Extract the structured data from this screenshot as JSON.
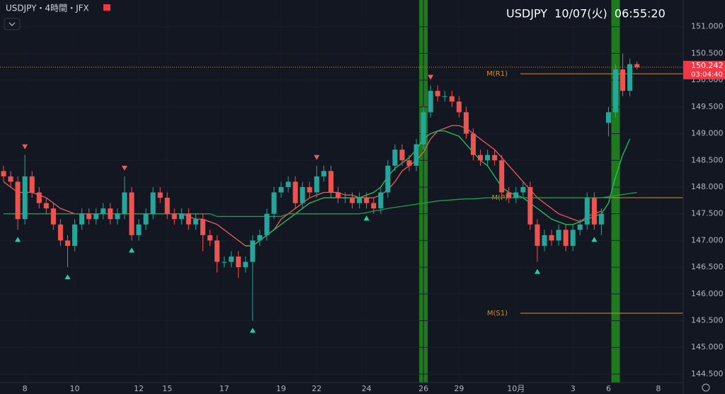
{
  "header": {
    "symbol": "USDJPY・4時間・JFX",
    "clock": "USDJPY  10/07(火)  06:55:20"
  },
  "chart_data": {
    "type": "candlestick",
    "categories": [
      null,
      null,
      null,
      "8",
      null,
      null,
      null,
      null,
      null,
      null,
      "10",
      null,
      null,
      null,
      null,
      null,
      null,
      null,
      null,
      "12",
      null,
      null,
      null,
      "15",
      null,
      null,
      null,
      null,
      null,
      null,
      null,
      "17",
      null,
      null,
      null,
      null,
      null,
      null,
      null,
      "19",
      null,
      null,
      null,
      null,
      "22",
      null,
      null,
      null,
      null,
      null,
      null,
      "24",
      null,
      null,
      null,
      null,
      null,
      null,
      null,
      "26",
      null,
      null,
      null,
      null,
      "29",
      null,
      null,
      null,
      null,
      null,
      null,
      null,
      "10月",
      null,
      null,
      null,
      null,
      null,
      null,
      null,
      "3",
      null,
      null,
      null,
      null,
      "6",
      null,
      null,
      null,
      null,
      null,
      null,
      "8",
      null,
      null,
      null
    ],
    "open": [
      148.3,
      148.2,
      148.1,
      147.4,
      148.2,
      147.9,
      147.7,
      147.6,
      147.3,
      147.0,
      146.9,
      147.3,
      147.5,
      147.4,
      147.5,
      147.6,
      147.4,
      147.5,
      147.9,
      147.1,
      147.3,
      147.5,
      147.9,
      147.8,
      147.5,
      147.4,
      147.5,
      147.3,
      147.4,
      147.1,
      147.0,
      146.6,
      146.6,
      146.7,
      146.5,
      146.6,
      147.0,
      147.1,
      147.5,
      147.9,
      148.0,
      148.1,
      147.7,
      148.0,
      147.9,
      148.2,
      148.3,
      147.9,
      147.8,
      147.8,
      147.7,
      147.8,
      147.7,
      147.6,
      147.9,
      148.4,
      148.7,
      148.5,
      148.4,
      148.8,
      149.4,
      149.8,
      149.7,
      149.7,
      149.6,
      149.4,
      149.0,
      148.6,
      148.5,
      148.6,
      148.5,
      147.9,
      147.8,
      147.9,
      148.0,
      147.3,
      146.9,
      147.1,
      147.0,
      147.2,
      146.9,
      147.2,
      147.3,
      147.8,
      147.3,
      149.2,
      149.4,
      150.2,
      149.8,
      150.3,
      null,
      null,
      null,
      null,
      null,
      null
    ],
    "high": [
      148.4,
      148.3,
      148.2,
      148.6,
      148.3,
      148.0,
      147.8,
      147.7,
      147.4,
      147.1,
      147.4,
      147.6,
      147.6,
      147.6,
      147.7,
      147.7,
      147.6,
      148.2,
      148.0,
      147.4,
      147.6,
      148.0,
      148.0,
      147.9,
      147.6,
      147.6,
      147.6,
      147.5,
      147.5,
      147.2,
      147.1,
      146.7,
      146.8,
      146.8,
      146.7,
      147.1,
      147.2,
      147.6,
      148.0,
      148.1,
      148.2,
      148.2,
      148.1,
      148.1,
      148.4,
      148.4,
      148.4,
      148.0,
      147.9,
      147.9,
      147.9,
      147.9,
      147.8,
      148.0,
      148.5,
      148.8,
      148.8,
      148.6,
      148.9,
      149.5,
      149.9,
      149.9,
      149.8,
      149.8,
      149.7,
      149.5,
      149.1,
      148.7,
      148.7,
      148.7,
      148.6,
      148.0,
      148.0,
      148.1,
      148.1,
      147.4,
      147.2,
      147.2,
      147.3,
      147.3,
      147.3,
      147.4,
      147.9,
      147.9,
      147.6,
      149.5,
      150.3,
      150.5,
      150.4,
      150.35,
      null,
      null,
      null,
      null,
      null,
      null
    ],
    "low": [
      148.1,
      148.0,
      147.2,
      147.3,
      147.8,
      147.6,
      147.5,
      147.2,
      146.9,
      146.5,
      146.8,
      147.2,
      147.3,
      147.3,
      147.4,
      147.3,
      147.3,
      147.4,
      147.0,
      147.0,
      147.2,
      147.4,
      147.7,
      147.4,
      147.3,
      147.3,
      147.2,
      147.2,
      146.8,
      146.9,
      146.4,
      146.5,
      146.5,
      146.3,
      146.4,
      145.5,
      146.9,
      147.0,
      147.4,
      147.8,
      147.9,
      147.6,
      147.6,
      147.8,
      147.8,
      148.1,
      147.8,
      147.7,
      147.7,
      147.6,
      147.6,
      147.6,
      147.5,
      147.5,
      147.8,
      148.3,
      148.4,
      148.3,
      148.3,
      148.7,
      149.3,
      149.6,
      149.6,
      149.5,
      149.3,
      148.9,
      148.5,
      148.4,
      148.4,
      148.4,
      147.8,
      147.7,
      147.7,
      147.8,
      147.2,
      146.6,
      146.8,
      146.9,
      146.9,
      146.8,
      146.8,
      147.1,
      147.2,
      147.2,
      147.1,
      148.95,
      149.3,
      149.7,
      149.7,
      150.2,
      null,
      null,
      null,
      null,
      null,
      null
    ],
    "close": [
      148.2,
      148.1,
      147.4,
      148.2,
      147.9,
      147.7,
      147.6,
      147.3,
      147.0,
      146.9,
      147.3,
      147.5,
      147.4,
      147.5,
      147.6,
      147.4,
      147.5,
      147.9,
      147.1,
      147.3,
      147.5,
      147.9,
      147.8,
      147.5,
      147.4,
      147.5,
      147.3,
      147.4,
      147.1,
      147.0,
      146.6,
      146.6,
      146.7,
      146.5,
      146.6,
      147.0,
      147.1,
      147.5,
      147.9,
      148.0,
      148.1,
      147.7,
      148.0,
      147.9,
      148.2,
      148.3,
      147.9,
      147.8,
      147.8,
      147.7,
      147.8,
      147.7,
      147.6,
      147.9,
      148.4,
      148.7,
      148.5,
      148.4,
      148.8,
      149.4,
      149.8,
      149.7,
      149.7,
      149.6,
      149.4,
      149.0,
      148.6,
      148.5,
      148.6,
      148.5,
      147.9,
      147.8,
      147.9,
      148.0,
      147.3,
      146.9,
      147.1,
      147.0,
      147.2,
      146.9,
      147.2,
      147.3,
      147.8,
      147.3,
      147.5,
      149.4,
      150.2,
      149.8,
      150.3,
      150.242,
      null,
      null,
      null,
      null,
      null,
      null
    ],
    "up_color": "#26a69a",
    "down_color": "#ef5350",
    "series": [
      {
        "color": "#f05a5a",
        "values": [
          148.1,
          148.0,
          147.9,
          147.9,
          147.9,
          147.85,
          147.8,
          147.7,
          147.6,
          147.55,
          147.5,
          147.5,
          147.5,
          147.5,
          147.5,
          147.5,
          147.5,
          147.5,
          147.5,
          147.5,
          147.5,
          147.5,
          147.5,
          147.5,
          147.5,
          147.5,
          147.45,
          147.4,
          147.4,
          147.35,
          147.3,
          147.2,
          147.1,
          147.0,
          146.9,
          146.9,
          147.0,
          147.1,
          147.2,
          147.4,
          147.5,
          147.6,
          147.7,
          147.8,
          147.85,
          147.9,
          147.9,
          147.9,
          147.85,
          147.85,
          147.8,
          147.8,
          147.8,
          147.85,
          147.95,
          148.1,
          148.3,
          148.4,
          148.5,
          148.65,
          148.9,
          149.05,
          149.1,
          149.15,
          149.15,
          149.1,
          149.0,
          148.9,
          148.8,
          148.7,
          148.55,
          148.4,
          148.25,
          148.1,
          147.95,
          147.8,
          147.7,
          147.6,
          147.5,
          147.45,
          147.4,
          147.35,
          147.45,
          147.5,
          147.55,
          null,
          null,
          null,
          null,
          null,
          null,
          null,
          null,
          null,
          null,
          null
        ]
      },
      {
        "color": "#22c55e",
        "values": [
          null,
          null,
          null,
          null,
          null,
          null,
          null,
          null,
          null,
          null,
          null,
          null,
          null,
          null,
          null,
          null,
          null,
          null,
          null,
          null,
          null,
          null,
          null,
          null,
          null,
          null,
          null,
          null,
          null,
          null,
          null,
          null,
          null,
          null,
          146.9,
          146.9,
          147.0,
          147.1,
          147.2,
          147.3,
          147.4,
          147.5,
          147.6,
          147.7,
          147.75,
          147.8,
          147.8,
          147.8,
          147.8,
          147.8,
          147.8,
          147.85,
          147.9,
          148.0,
          148.2,
          148.35,
          148.45,
          148.55,
          148.7,
          148.9,
          149.0,
          149.05,
          149.05,
          149.0,
          148.95,
          148.8,
          148.65,
          148.5,
          148.4,
          148.2,
          148.0,
          147.9,
          147.85,
          147.8,
          147.7,
          147.6,
          147.5,
          147.4,
          147.35,
          147.3,
          147.3,
          147.35,
          147.4,
          147.45,
          147.5,
          147.7,
          148.2,
          148.6,
          148.9,
          null,
          null,
          null,
          null,
          null,
          null,
          null
        ]
      },
      {
        "color": "#16a34a",
        "values": [
          147.5,
          147.5,
          147.5,
          147.5,
          147.5,
          147.5,
          147.5,
          147.5,
          147.5,
          147.5,
          147.5,
          147.5,
          147.5,
          147.5,
          147.5,
          147.5,
          147.5,
          147.5,
          147.5,
          147.5,
          147.5,
          147.5,
          147.5,
          147.5,
          147.5,
          147.5,
          147.5,
          147.5,
          147.5,
          147.5,
          147.45,
          147.45,
          147.45,
          147.45,
          147.45,
          147.45,
          147.45,
          147.45,
          147.45,
          147.45,
          147.5,
          147.5,
          147.5,
          147.5,
          147.5,
          147.5,
          147.5,
          147.5,
          147.5,
          147.5,
          147.5,
          147.52,
          147.55,
          147.57,
          147.6,
          147.62,
          147.64,
          147.66,
          147.68,
          147.7,
          147.72,
          147.74,
          147.75,
          147.76,
          147.77,
          147.78,
          147.78,
          147.79,
          147.8,
          147.8,
          147.8,
          147.8,
          147.8,
          147.8,
          147.8,
          147.8,
          147.8,
          147.8,
          147.8,
          147.8,
          147.8,
          147.8,
          147.8,
          147.8,
          147.8,
          147.82,
          147.84,
          147.86,
          147.88,
          147.9,
          null,
          null,
          null,
          null,
          null,
          null
        ]
      }
    ],
    "levels": [
      {
        "label": "M(R1)",
        "value": 150.12
      },
      {
        "label": "M(P)",
        "value": 147.8
      },
      {
        "label": "M(S1)",
        "value": 145.64
      }
    ],
    "level_color": "#d4901f",
    "last_price": 150.242,
    "countdown": "03:04:40",
    "price_label_color": "#f23645",
    "highlight_bars": [
      59,
      86
    ],
    "highlight_color": "#1f7a1f",
    "signals_up": [
      2,
      9,
      18,
      35,
      51,
      75,
      83
    ],
    "signals_down": [
      3,
      17,
      44,
      60
    ],
    "ylim": [
      144.34,
      151.5
    ],
    "yticks": [
      {
        "value": 151,
        "label": "151.000"
      },
      {
        "value": 150.5,
        "label": "150.500"
      },
      {
        "value": 150,
        "label": "150.000"
      },
      {
        "value": 149.5,
        "label": "149.500"
      },
      {
        "value": 149,
        "label": "149.000"
      },
      {
        "value": 148.5,
        "label": "148.500"
      },
      {
        "value": 148,
        "label": "148.000"
      },
      {
        "value": 147.5,
        "label": "147.500"
      },
      {
        "value": 147,
        "label": "147.000"
      },
      {
        "value": 146.5,
        "label": "146.500"
      },
      {
        "value": 146,
        "label": "146.000"
      },
      {
        "value": 145.5,
        "label": "145.500"
      },
      {
        "value": 145,
        "label": "145.000"
      },
      {
        "value": 144.5,
        "label": "144.500"
      }
    ],
    "grid": true
  }
}
